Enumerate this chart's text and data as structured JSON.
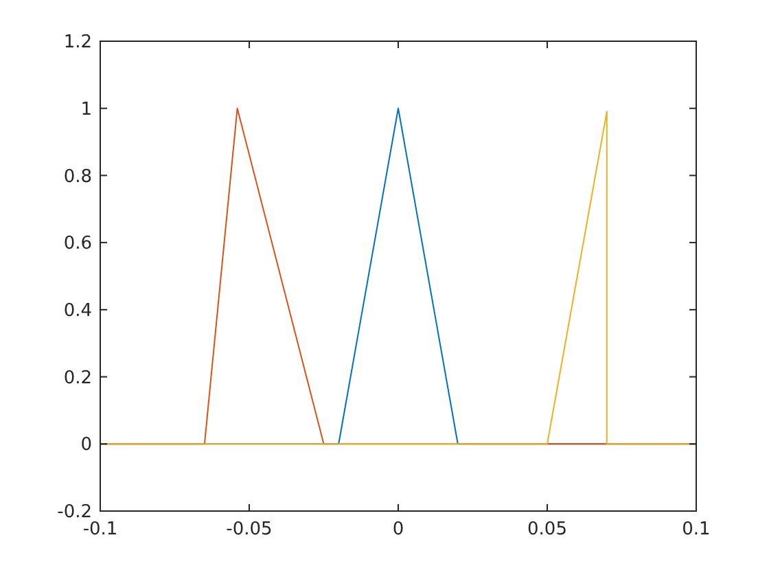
{
  "chart_data": {
    "type": "line",
    "xlim": [
      -0.1,
      0.1
    ],
    "xticks": [
      -0.1,
      -0.05,
      0,
      0.05,
      0.1
    ],
    "ylim": [
      -0.2,
      1.2
    ],
    "yticks": [
      -0.2,
      0,
      0.2,
      0.4,
      0.6,
      0.8,
      1,
      1.2
    ],
    "series": [
      {
        "color": "#0072bd",
        "x": [
          -0.1,
          -0.02,
          0,
          0.02,
          0.1
        ],
        "values": [
          0,
          0,
          1,
          0,
          0
        ]
      },
      {
        "color": "#d95319",
        "x": [
          -0.1,
          -0.065,
          -0.054,
          -0.025,
          0.1
        ],
        "values": [
          0,
          0,
          1,
          0,
          0
        ]
      },
      {
        "color": "#edb120",
        "x": [
          -0.1,
          0.05,
          0.07,
          0.07,
          0.1
        ],
        "values": [
          0,
          0,
          0.99,
          0,
          0
        ]
      }
    ],
    "line_style": "solid"
  }
}
